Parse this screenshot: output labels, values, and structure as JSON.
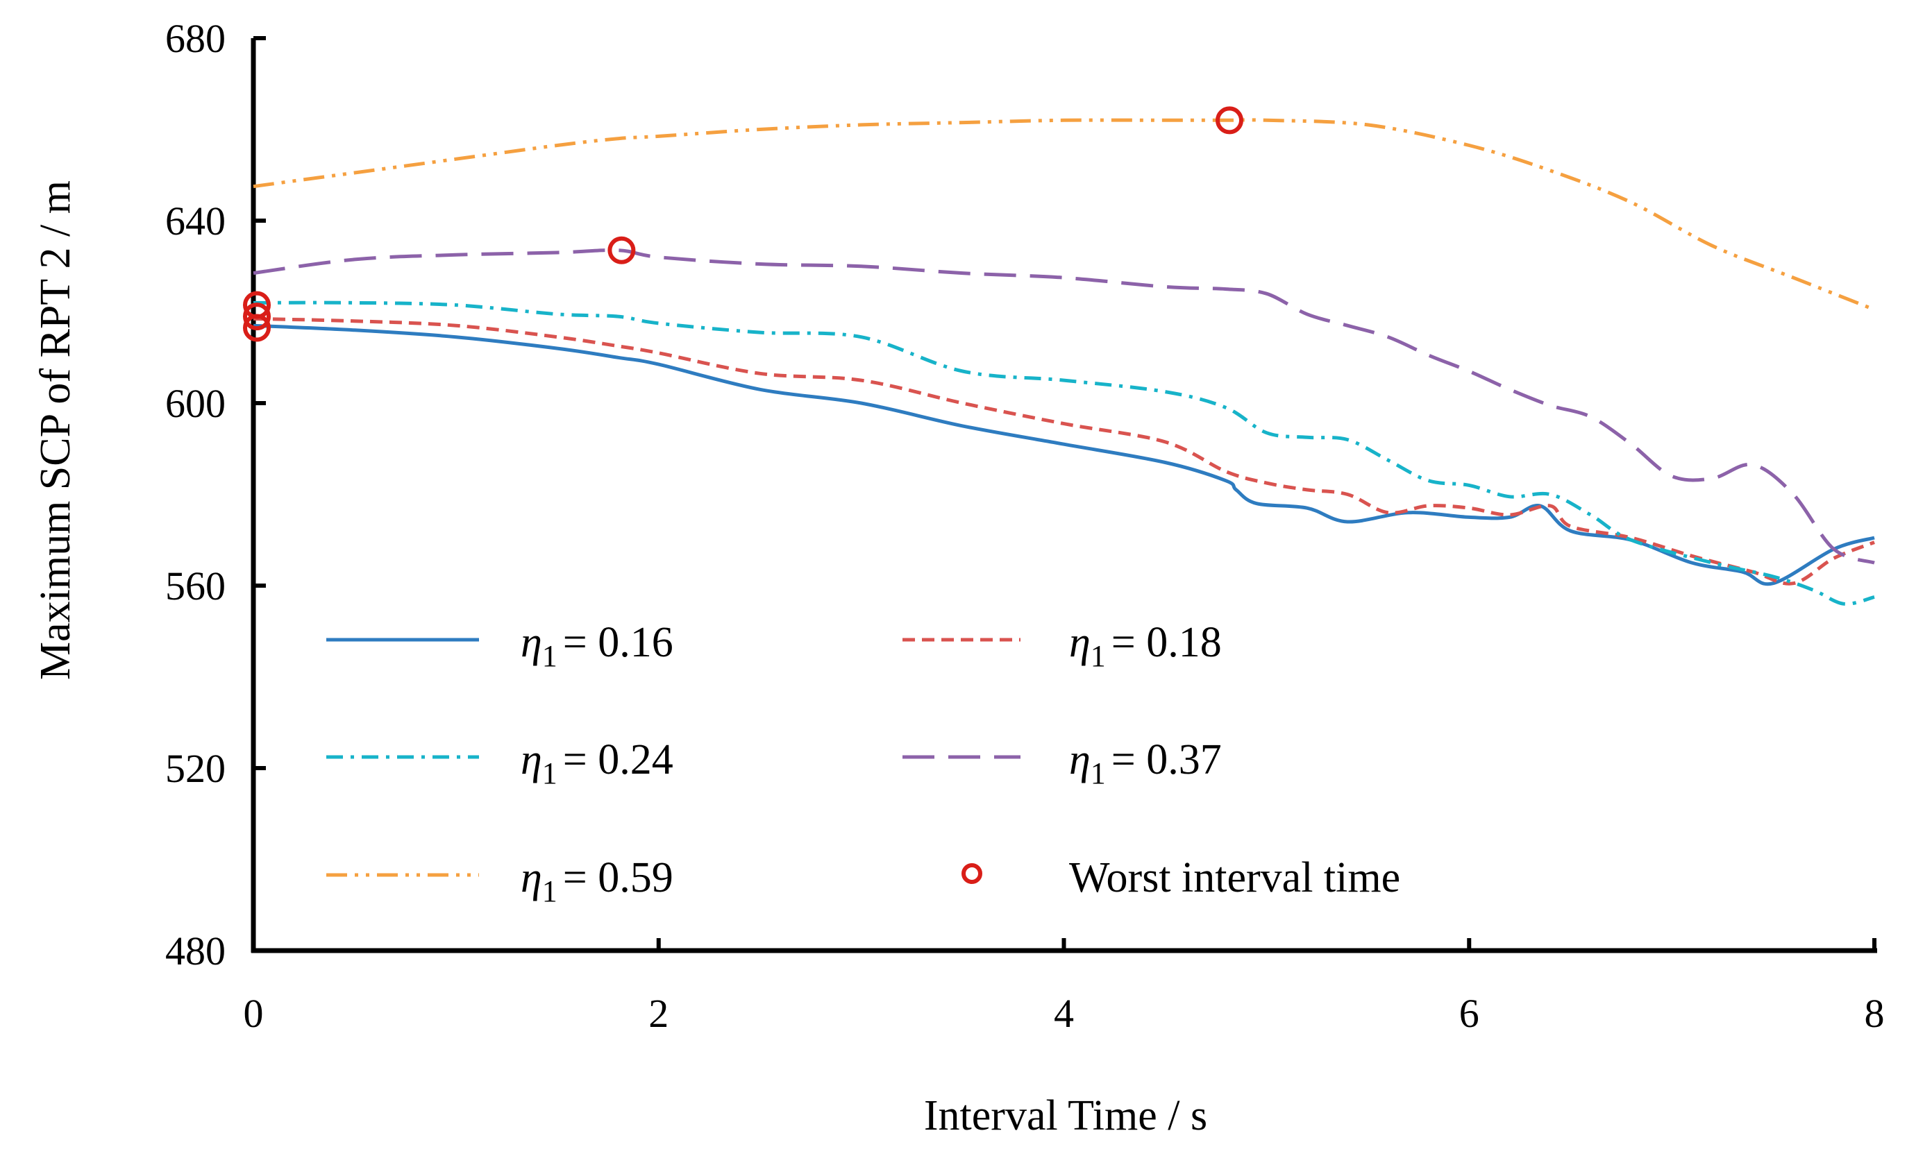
{
  "chart_data": {
    "type": "line",
    "title": "",
    "xlabel": "Interval Time / s",
    "ylabel": "Maximum SCP of  RPT 2 / m",
    "xlim": [
      0,
      8
    ],
    "ylim": [
      480,
      680
    ],
    "xticks": [
      0,
      2,
      4,
      6,
      8
    ],
    "yticks": [
      480,
      520,
      560,
      600,
      640,
      680
    ],
    "xtick_labels": [
      "0",
      "2",
      "4",
      "6",
      "8"
    ],
    "ytick_labels": [
      "480",
      "520",
      "560",
      "600",
      "640",
      "680"
    ],
    "grid": false,
    "legend_position": "lower-left inside plot, 3 rows x 2 columns",
    "series": [
      {
        "name": "η1 = 0.16",
        "legend_symbol": "η",
        "legend_sub": "1",
        "legend_value": "= 0.16",
        "color": "#2E7CC0",
        "dash": "solid",
        "x": [
          0,
          0.5,
          1,
          1.5,
          1.8,
          2,
          2.5,
          3,
          3.5,
          4,
          4.5,
          4.8,
          4.85,
          4.95,
          5.2,
          5.4,
          5.7,
          6.0,
          6.2,
          6.35,
          6.5,
          6.8,
          7.1,
          7.35,
          7.5,
          7.8,
          8.0
        ],
        "y": [
          617,
          616,
          614.5,
          612,
          610,
          608.5,
          603,
          600,
          595,
          591,
          587,
          583,
          581,
          578,
          577,
          574,
          576,
          575,
          575,
          577.5,
          572,
          570,
          565,
          563,
          560.5,
          568,
          570.5
        ]
      },
      {
        "name": "η1 = 0.18",
        "legend_symbol": "η",
        "legend_sub": "1",
        "legend_value": "= 0.18",
        "color": "#D9534F",
        "dash": "short-dash",
        "x": [
          0,
          0.5,
          1,
          1.5,
          1.8,
          2,
          2.5,
          3,
          3.5,
          4,
          4.5,
          4.8,
          5.0,
          5.2,
          5.4,
          5.6,
          5.8,
          6.0,
          6.2,
          6.4,
          6.5,
          6.8,
          7.1,
          7.4,
          7.6,
          7.8,
          8.0
        ],
        "y": [
          618.5,
          618,
          617,
          614.5,
          612.5,
          611,
          606.5,
          605,
          600,
          595.5,
          591.5,
          585,
          582.5,
          581,
          580,
          576,
          577.5,
          577,
          575.5,
          577.5,
          573,
          570.5,
          566.5,
          563,
          560.5,
          566,
          569.5
        ]
      },
      {
        "name": "η1 = 0.24",
        "legend_symbol": "η",
        "legend_sub": "1",
        "legend_value": "= 0.24",
        "color": "#17B3C9",
        "dash": "dash-dot",
        "x": [
          0,
          0.5,
          1,
          1.5,
          1.8,
          2,
          2.5,
          3,
          3.5,
          4,
          4.5,
          4.8,
          5.0,
          5.2,
          5.4,
          5.6,
          5.8,
          6.0,
          6.2,
          6.4,
          6.6,
          6.8,
          7.2,
          7.5,
          7.7,
          7.85,
          8.0
        ],
        "y": [
          622,
          622,
          621.5,
          619.5,
          619,
          617.5,
          615.5,
          614.5,
          607,
          605,
          602.5,
          599,
          593.5,
          592.5,
          592,
          587.5,
          583,
          582,
          579.5,
          580,
          575.5,
          570,
          565,
          562,
          559,
          556,
          557.5
        ]
      },
      {
        "name": "η1 = 0.37",
        "legend_symbol": "η",
        "legend_sub": "1",
        "legend_value": "= 0.37",
        "color": "#8C62A9",
        "dash": "long-dash",
        "x": [
          0,
          0.5,
          1,
          1.5,
          1.8,
          2,
          2.5,
          3,
          3.5,
          4,
          4.5,
          4.8,
          5.0,
          5.2,
          5.4,
          5.6,
          5.8,
          6.0,
          6.2,
          6.4,
          6.6,
          6.8,
          7.0,
          7.2,
          7.4,
          7.6,
          7.8,
          8.0
        ],
        "y": [
          628.5,
          631.5,
          632.5,
          633,
          633.5,
          632,
          630.5,
          630,
          628.5,
          627.5,
          625.5,
          625,
          624,
          619.5,
          617,
          614.5,
          610.5,
          607,
          603,
          599.5,
          597,
          591,
          584,
          583.5,
          586.5,
          580,
          568,
          565
        ]
      },
      {
        "name": "η1 = 0.59",
        "legend_symbol": "η",
        "legend_sub": "1",
        "legend_value": "= 0.59",
        "color": "#F5A040",
        "dash": "dash-dot-dot",
        "x": [
          0,
          0.5,
          1,
          1.5,
          1.8,
          2,
          2.5,
          3,
          3.5,
          4,
          4.5,
          4.8,
          5.0,
          5.5,
          6.0,
          6.4,
          6.8,
          7.2,
          7.6,
          8.0
        ],
        "y": [
          647.5,
          650.5,
          653.5,
          656.5,
          658,
          658.5,
          660,
          661,
          661.5,
          662,
          662,
          662,
          662,
          661,
          656.5,
          651,
          644,
          634.5,
          627.5,
          620.5
        ]
      }
    ],
    "markers": {
      "name": "Worst interval time",
      "color": "#D91E18",
      "shape": "open-circle",
      "points": [
        {
          "x": 0,
          "y": 621.5
        },
        {
          "x": 0,
          "y": 619
        },
        {
          "x": 0,
          "y": 616.5
        },
        {
          "x": 1.8,
          "y": 633.5
        },
        {
          "x": 4.8,
          "y": 662
        }
      ]
    }
  }
}
